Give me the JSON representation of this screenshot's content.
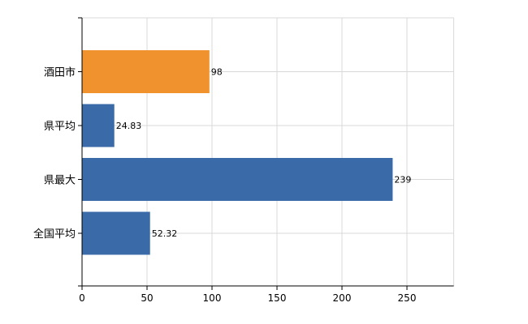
{
  "chart_data": {
    "type": "bar",
    "orientation": "horizontal",
    "categories": [
      "酒田市",
      "県平均",
      "県最大",
      "全国平均"
    ],
    "values": [
      98,
      24.83,
      239,
      52.32
    ],
    "value_labels": [
      "98",
      "24.83",
      "239",
      "52.32"
    ],
    "bar_colors": [
      "#f0922e",
      "#3a6aa8",
      "#3a6aa8",
      "#3a6aa8"
    ],
    "x_ticks": [
      0,
      50,
      100,
      150,
      200,
      250
    ],
    "x_tick_labels": [
      "0",
      "50",
      "100",
      "150",
      "200",
      "250"
    ],
    "xlim": [
      0,
      286
    ],
    "grid": true,
    "legend": "none",
    "title": "",
    "xlabel": "",
    "ylabel": ""
  },
  "colors": {
    "highlight": "#f0922e",
    "default": "#3a6aa8",
    "grid": "#d9d9d9",
    "axis": "#000000"
  }
}
